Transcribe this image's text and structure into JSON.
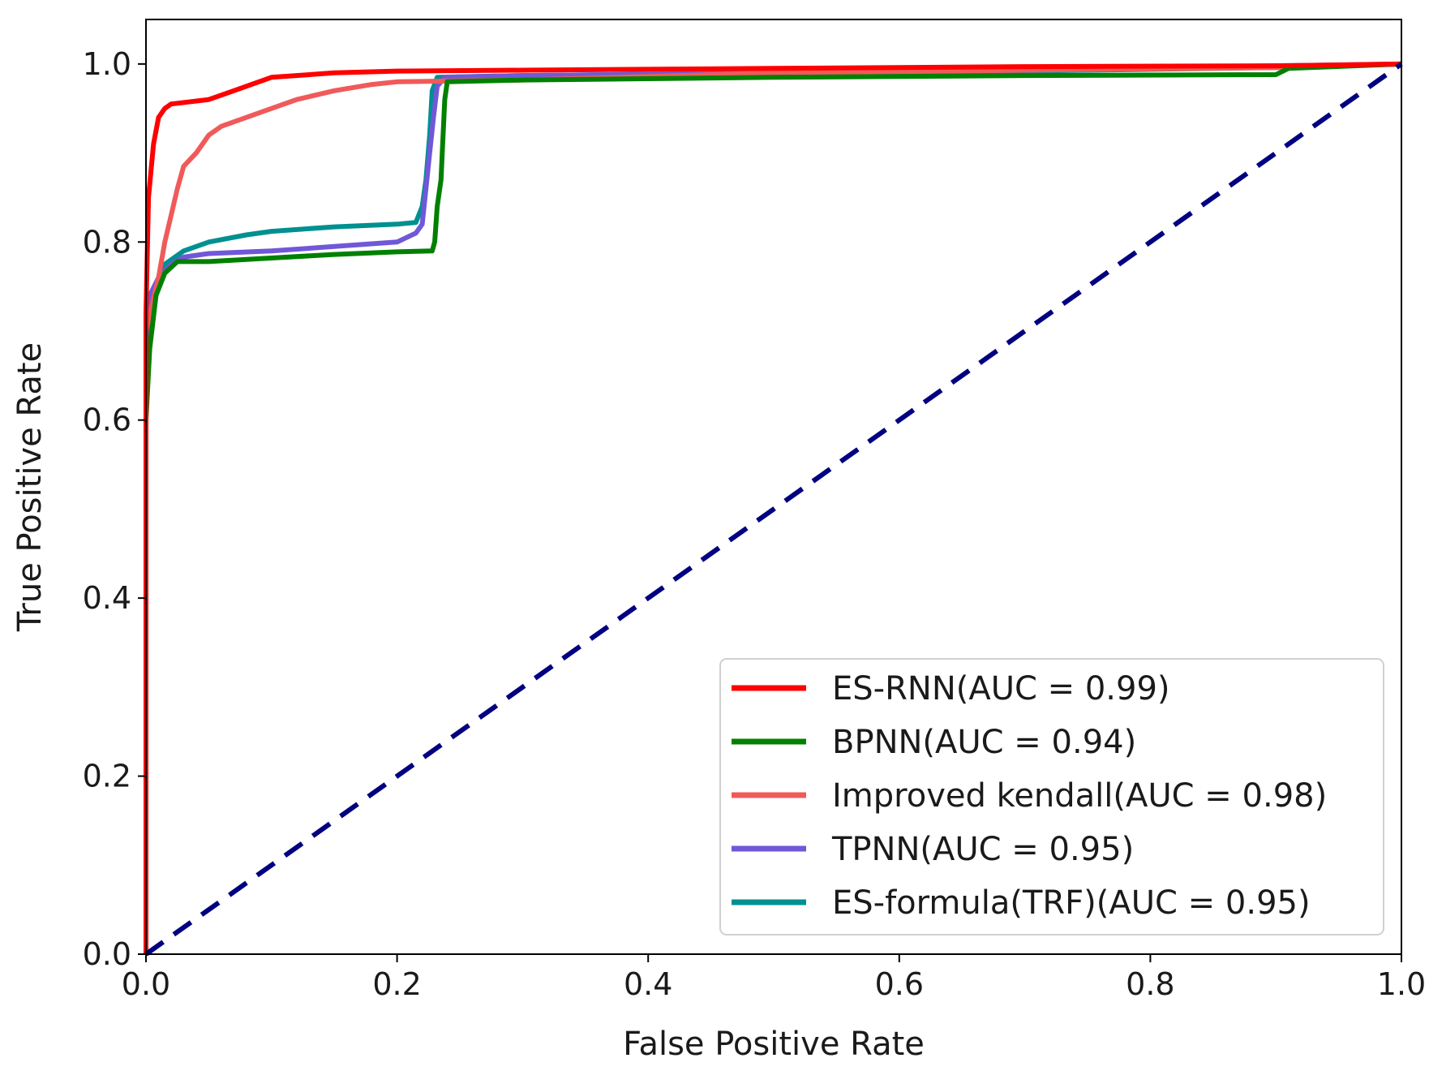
{
  "chart_data": {
    "type": "line",
    "title": "",
    "xlabel": "False Positive Rate",
    "ylabel": "True Positive Rate",
    "xlim": [
      0.0,
      1.0
    ],
    "ylim": [
      0.0,
      1.05
    ],
    "xticks": [
      0.0,
      0.2,
      0.4,
      0.6,
      0.8,
      1.0
    ],
    "yticks": [
      0.0,
      0.2,
      0.4,
      0.6,
      0.8,
      1.0
    ],
    "xtick_labels": [
      "0.0",
      "0.2",
      "0.4",
      "0.6",
      "0.8",
      "1.0"
    ],
    "ytick_labels": [
      "0.0",
      "0.2",
      "0.4",
      "0.6",
      "0.8",
      "1.0"
    ],
    "grid": false,
    "legend_position": "bottom-right",
    "series": [
      {
        "name": "ES-RNN(AUC = 0.99)",
        "color": "#ff0000",
        "points": [
          [
            0,
            0
          ],
          [
            0,
            0.72
          ],
          [
            0.002,
            0.85
          ],
          [
            0.006,
            0.91
          ],
          [
            0.01,
            0.94
          ],
          [
            0.015,
            0.95
          ],
          [
            0.02,
            0.955
          ],
          [
            0.05,
            0.96
          ],
          [
            0.07,
            0.97
          ],
          [
            0.08,
            0.975
          ],
          [
            0.1,
            0.985
          ],
          [
            0.15,
            0.99
          ],
          [
            0.2,
            0.992
          ],
          [
            0.3,
            0.993
          ],
          [
            0.5,
            0.995
          ],
          [
            0.7,
            0.997
          ],
          [
            0.9,
            0.998
          ],
          [
            1.0,
            1.0
          ]
        ]
      },
      {
        "name": "BPNN(AUC = 0.94)",
        "color": "#008000",
        "points": [
          [
            0,
            0
          ],
          [
            0,
            0.6
          ],
          [
            0.003,
            0.68
          ],
          [
            0.008,
            0.74
          ],
          [
            0.015,
            0.765
          ],
          [
            0.025,
            0.778
          ],
          [
            0.05,
            0.778
          ],
          [
            0.1,
            0.782
          ],
          [
            0.15,
            0.786
          ],
          [
            0.2,
            0.789
          ],
          [
            0.228,
            0.79
          ],
          [
            0.23,
            0.8
          ],
          [
            0.232,
            0.84
          ],
          [
            0.235,
            0.87
          ],
          [
            0.236,
            0.9
          ],
          [
            0.238,
            0.96
          ],
          [
            0.24,
            0.98
          ],
          [
            0.3,
            0.982
          ],
          [
            0.5,
            0.985
          ],
          [
            0.7,
            0.987
          ],
          [
            0.9,
            0.988
          ],
          [
            0.91,
            0.995
          ],
          [
            1.0,
            1.0
          ]
        ]
      },
      {
        "name": "Improved kendall(AUC = 0.98)",
        "color": "#f05a5a",
        "points": [
          [
            0,
            0
          ],
          [
            0,
            0.7
          ],
          [
            0.005,
            0.73
          ],
          [
            0.01,
            0.76
          ],
          [
            0.015,
            0.8
          ],
          [
            0.02,
            0.83
          ],
          [
            0.025,
            0.86
          ],
          [
            0.03,
            0.885
          ],
          [
            0.04,
            0.9
          ],
          [
            0.05,
            0.92
          ],
          [
            0.06,
            0.93
          ],
          [
            0.08,
            0.94
          ],
          [
            0.1,
            0.95
          ],
          [
            0.12,
            0.96
          ],
          [
            0.15,
            0.97
          ],
          [
            0.18,
            0.977
          ],
          [
            0.2,
            0.98
          ],
          [
            0.3,
            0.982
          ],
          [
            0.5,
            0.99
          ],
          [
            0.7,
            0.993
          ],
          [
            0.9,
            0.996
          ],
          [
            1.0,
            1.0
          ]
        ]
      },
      {
        "name": "TPNN(AUC = 0.95)",
        "color": "#7058d8",
        "points": [
          [
            0,
            0
          ],
          [
            0,
            0.7
          ],
          [
            0.003,
            0.74
          ],
          [
            0.01,
            0.76
          ],
          [
            0.02,
            0.775
          ],
          [
            0.03,
            0.783
          ],
          [
            0.05,
            0.787
          ],
          [
            0.1,
            0.79
          ],
          [
            0.15,
            0.795
          ],
          [
            0.2,
            0.8
          ],
          [
            0.215,
            0.81
          ],
          [
            0.22,
            0.82
          ],
          [
            0.223,
            0.86
          ],
          [
            0.226,
            0.9
          ],
          [
            0.229,
            0.94
          ],
          [
            0.232,
            0.975
          ],
          [
            0.238,
            0.985
          ],
          [
            0.3,
            0.987
          ],
          [
            0.5,
            0.99
          ],
          [
            0.7,
            0.993
          ],
          [
            0.85,
            0.997
          ],
          [
            1.0,
            1.0
          ]
        ]
      },
      {
        "name": "ES-formula(TRF)(AUC = 0.95)",
        "color": "#009090",
        "points": [
          [
            0,
            0
          ],
          [
            0,
            0.62
          ],
          [
            0.003,
            0.7
          ],
          [
            0.008,
            0.75
          ],
          [
            0.015,
            0.775
          ],
          [
            0.03,
            0.79
          ],
          [
            0.05,
            0.8
          ],
          [
            0.08,
            0.808
          ],
          [
            0.1,
            0.812
          ],
          [
            0.15,
            0.817
          ],
          [
            0.2,
            0.82
          ],
          [
            0.215,
            0.822
          ],
          [
            0.22,
            0.84
          ],
          [
            0.223,
            0.87
          ],
          [
            0.226,
            0.92
          ],
          [
            0.228,
            0.97
          ],
          [
            0.232,
            0.985
          ],
          [
            0.3,
            0.987
          ],
          [
            0.5,
            0.99
          ],
          [
            0.7,
            0.992
          ],
          [
            0.9,
            0.996
          ],
          [
            1.0,
            1.0
          ]
        ]
      }
    ],
    "reference_line": {
      "name": "chance-diagonal",
      "color": "#000080",
      "points": [
        [
          0,
          0
        ],
        [
          1,
          1
        ]
      ]
    }
  }
}
